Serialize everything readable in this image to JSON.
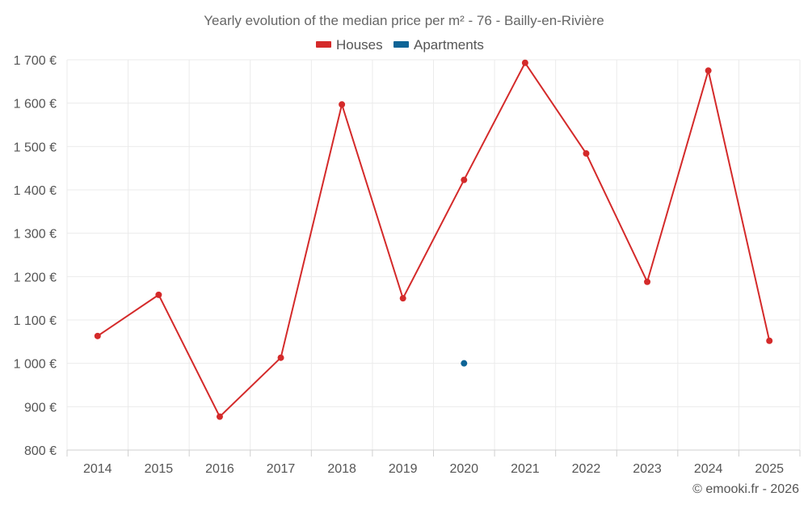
{
  "chart_data": {
    "type": "line",
    "title": "Yearly evolution of the median price per m² - 76 - Bailly-en-Rivière",
    "categories": [
      "2014",
      "2015",
      "2016",
      "2017",
      "2018",
      "2019",
      "2020",
      "2021",
      "2022",
      "2023",
      "2024",
      "2025"
    ],
    "series": [
      {
        "name": "Houses",
        "color": "#d42a2a",
        "values": [
          1063,
          1158,
          877,
          1013,
          1597,
          1150,
          1423,
          1693,
          1484,
          1188,
          1675,
          1052
        ]
      },
      {
        "name": "Apartments",
        "color": "#0e6496",
        "values": [
          null,
          null,
          null,
          null,
          null,
          null,
          1000,
          null,
          null,
          null,
          null,
          null
        ]
      }
    ],
    "ylim": [
      800,
      1700
    ],
    "yticks": [
      800,
      900,
      1000,
      1100,
      1200,
      1300,
      1400,
      1500,
      1600,
      1700
    ],
    "ytick_labels": [
      "800 €",
      "900 €",
      "1 000 €",
      "1 100 €",
      "1 200 €",
      "1 300 €",
      "1 400 €",
      "1 500 €",
      "1 600 €",
      "1 700 €"
    ],
    "grid": true,
    "legend": "top-center",
    "xlabel": "",
    "ylabel": ""
  },
  "credit": "© emooki.fr - 2026"
}
